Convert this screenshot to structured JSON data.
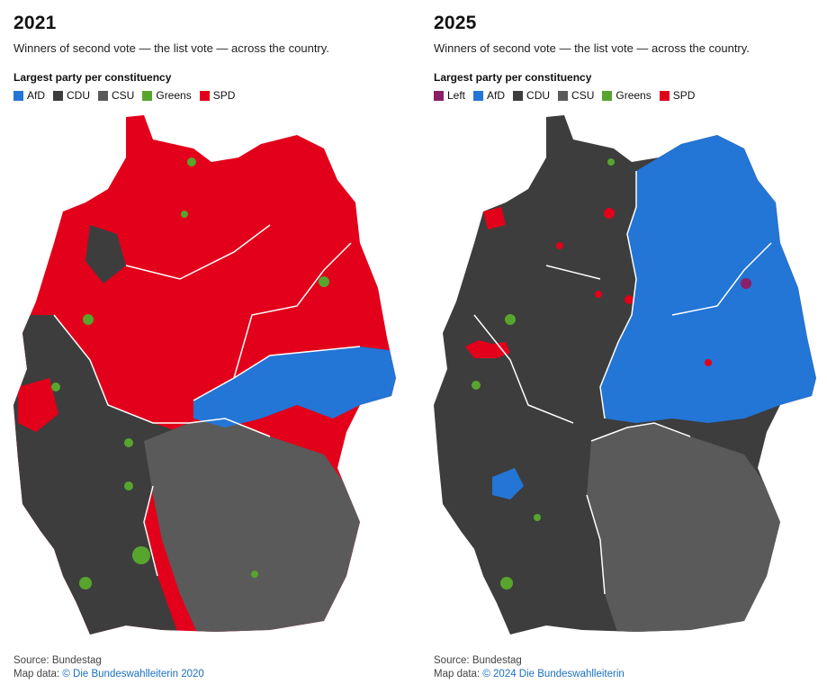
{
  "colors": {
    "afd": "#2375d6",
    "cdu": "#3d3d3d",
    "csu": "#5a5a5a",
    "greens": "#57a52d",
    "spd": "#e2001a",
    "left": "#8a2067"
  },
  "panels": [
    {
      "year": "2021",
      "subtitle": "Winners of second vote — the list vote — across the country.",
      "legend_title": "Largest party per constituency",
      "legend": [
        {
          "label": "AfD",
          "color": "#2375d6"
        },
        {
          "label": "CDU",
          "color": "#3d3d3d"
        },
        {
          "label": "CSU",
          "color": "#5a5a5a"
        },
        {
          "label": "Greens",
          "color": "#57a52d"
        },
        {
          "label": "SPD",
          "color": "#e2001a"
        }
      ],
      "source": "Source: Bundestag",
      "map_data_label": "Map data:",
      "map_data_link": "© Die Bundeswahlleiterin 2020"
    },
    {
      "year": "2025",
      "subtitle": "Winners of second vote — the list vote — across the country.",
      "legend_title": "Largest party per constituency",
      "legend": [
        {
          "label": "Left",
          "color": "#8a2067"
        },
        {
          "label": "AfD",
          "color": "#2375d6"
        },
        {
          "label": "CDU",
          "color": "#3d3d3d"
        },
        {
          "label": "CSU",
          "color": "#5a5a5a"
        },
        {
          "label": "Greens",
          "color": "#57a52d"
        },
        {
          "label": "SPD",
          "color": "#e2001a"
        }
      ],
      "source": "Source: Bundestag",
      "map_data_label": "Map data:",
      "map_data_link": "© 2024 Die Bundeswahlleiterin"
    }
  ]
}
